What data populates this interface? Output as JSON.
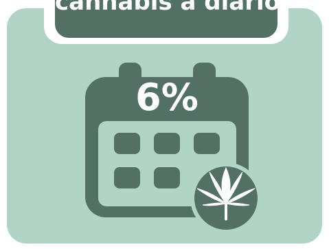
{
  "header": {
    "text": "cannabis a diario."
  },
  "stat": {
    "percent": "6%"
  },
  "icons": {
    "calendar": "calendar-icon",
    "leaf": "cannabis-leaf-icon"
  },
  "colors": {
    "card_background": "#b2d4c7",
    "dark_green": "#527063",
    "white": "#ffffff"
  }
}
